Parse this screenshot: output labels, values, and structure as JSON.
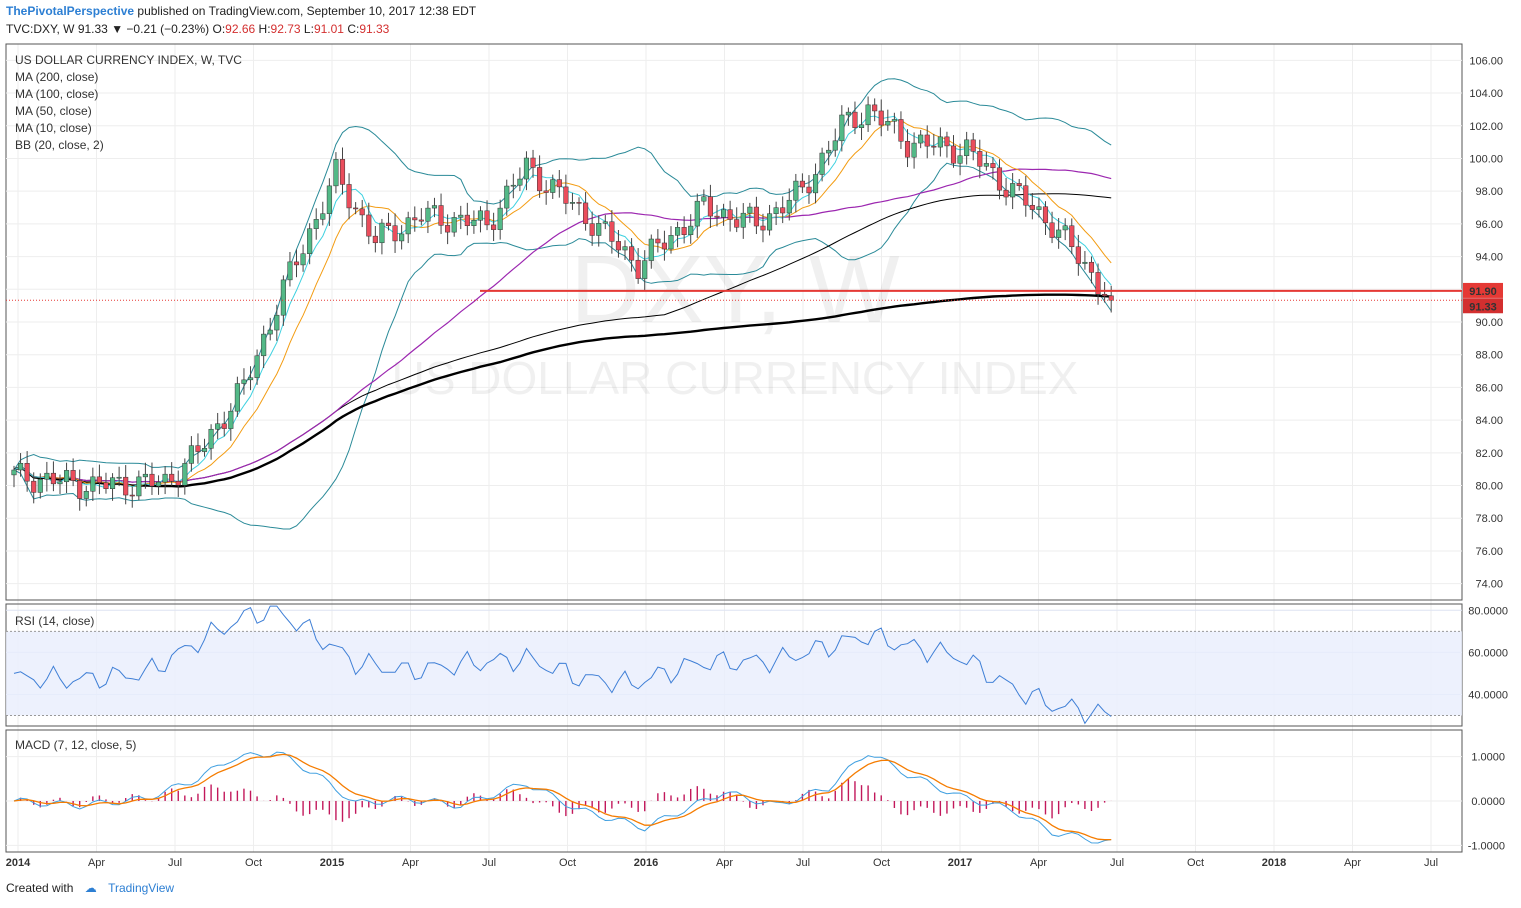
{
  "header": {
    "brand": "ThePivotalPerspective",
    "published": "published on TradingView.com, September 10, 2017 12:38 EDT",
    "symbol": "TVC:DXY, W",
    "last": "91.33",
    "change": "−0.21 (−0.23%)",
    "open_label": "O:",
    "open": "92.66",
    "high_label": "H:",
    "high": "92.73",
    "low_label": "L:",
    "low": "91.01",
    "close_label": "C:",
    "close": "91.33"
  },
  "footer": {
    "created_with": "Created with",
    "brand": "TradingView"
  },
  "colors": {
    "up": "#53b987",
    "down": "#eb4d5c",
    "ma200": "#000000",
    "ma100": "#000000",
    "ma50": "#9c27b0",
    "ma10": "#f39c12",
    "bb": "#2a8a98",
    "ma_fast": "#3fd1e0",
    "rsi": "#3f7fd6",
    "macd": "#3f9fe0",
    "signal": "#f57c00",
    "hist": "#c2185b",
    "level": "#e53935"
  },
  "watermark": {
    "symbol": "DXY, W",
    "name": "US DOLLAR CURRENCY INDEX"
  },
  "chart_data": [
    {
      "type": "candlestick",
      "title": "US DOLLAR CURRENCY INDEX, W, TVC",
      "legend": [
        "MA (200, close)",
        "MA (100, close)",
        "MA (50, close)",
        "MA (10, close)",
        "BB (20, close, 2)"
      ],
      "legend_position": "top-left",
      "ylim": [
        73,
        107
      ],
      "yticks": [
        "106.00",
        "104.00",
        "102.00",
        "100.00",
        "98.00",
        "96.00",
        "94.00",
        "92.00",
        "90.00",
        "88.00",
        "86.00",
        "84.00",
        "82.00",
        "80.00",
        "78.00",
        "76.00",
        "74.00"
      ],
      "xticks": [
        "2014",
        "Apr",
        "Jul",
        "Oct",
        "2015",
        "Apr",
        "Jul",
        "Oct",
        "2016",
        "Apr",
        "Jul",
        "Oct",
        "2017",
        "Apr",
        "Jul",
        "Oct",
        "2018",
        "Apr",
        "Jul"
      ],
      "price_labels": [
        {
          "value": 91.9,
          "text": "91.90"
        },
        {
          "value": 91.33,
          "text": "91.33"
        }
      ],
      "horizontal_level": 91.9,
      "anchors": [
        [
          0,
          80.6
        ],
        [
          12,
          80.0
        ],
        [
          23,
          80.2
        ],
        [
          28,
          82.0
        ],
        [
          35,
          86.0
        ],
        [
          41,
          92.0
        ],
        [
          49,
          99.0
        ],
        [
          55,
          95.0
        ],
        [
          62,
          96.5
        ],
        [
          72,
          96.0
        ],
        [
          78,
          99.5
        ],
        [
          87,
          96.5
        ],
        [
          95,
          93.5
        ],
        [
          105,
          97.0
        ],
        [
          113,
          96.0
        ],
        [
          120,
          98.0
        ],
        [
          126,
          102.0
        ],
        [
          130,
          103.0
        ],
        [
          136,
          101.0
        ],
        [
          145,
          100.5
        ],
        [
          152,
          98.0
        ],
        [
          158,
          96.0
        ],
        [
          163,
          93.5
        ],
        [
          167,
          91.3
        ]
      ],
      "grid": true
    },
    {
      "type": "line",
      "title": "RSI (14, close)",
      "ylim": [
        25,
        83
      ],
      "band": [
        30,
        70
      ],
      "yticks": [
        "80.0000",
        "60.0000",
        "40.0000"
      ],
      "anchors": [
        [
          0,
          48
        ],
        [
          10,
          47
        ],
        [
          20,
          50
        ],
        [
          28,
          65
        ],
        [
          32,
          72
        ],
        [
          36,
          78
        ],
        [
          40,
          80
        ],
        [
          46,
          68
        ],
        [
          52,
          55
        ],
        [
          60,
          51
        ],
        [
          70,
          55
        ],
        [
          78,
          57
        ],
        [
          86,
          48
        ],
        [
          94,
          45
        ],
        [
          104,
          55
        ],
        [
          116,
          56
        ],
        [
          124,
          63
        ],
        [
          130,
          68
        ],
        [
          136,
          63
        ],
        [
          144,
          58
        ],
        [
          152,
          43
        ],
        [
          158,
          35
        ],
        [
          167,
          30
        ]
      ],
      "grid": true
    },
    {
      "type": "line",
      "title": "MACD (7, 12, close, 5)",
      "ylim": [
        -1.15,
        1.6
      ],
      "yticks": [
        "1.0000",
        "0.0000",
        "-1.0000"
      ],
      "anchors": [
        [
          0,
          0
        ],
        [
          10,
          -0.1
        ],
        [
          20,
          0.05
        ],
        [
          28,
          0.5
        ],
        [
          33,
          0.95
        ],
        [
          40,
          1.1
        ],
        [
          46,
          0.6
        ],
        [
          52,
          -0.05
        ],
        [
          60,
          0.05
        ],
        [
          68,
          -0.1
        ],
        [
          78,
          0.4
        ],
        [
          86,
          -0.2
        ],
        [
          96,
          -0.6
        ],
        [
          108,
          0.2
        ],
        [
          116,
          -0.1
        ],
        [
          124,
          0.3
        ],
        [
          130,
          1.1
        ],
        [
          136,
          0.6
        ],
        [
          144,
          0.1
        ],
        [
          152,
          -0.2
        ],
        [
          158,
          -0.7
        ],
        [
          167,
          -0.95
        ]
      ],
      "series": [
        "MACD",
        "Signal",
        "Histogram"
      ],
      "grid": true
    }
  ]
}
